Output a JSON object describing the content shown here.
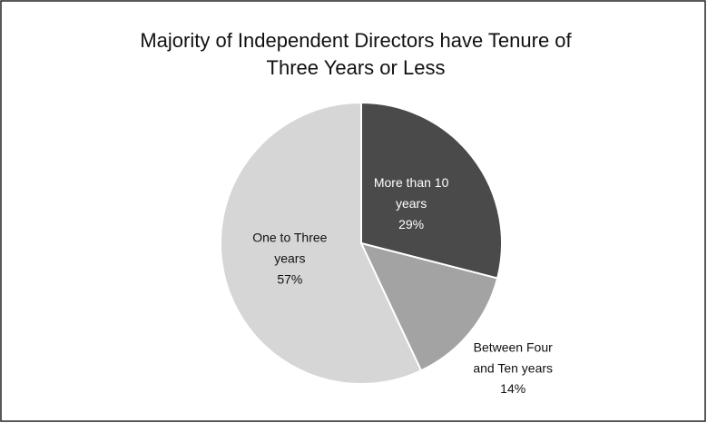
{
  "chart_data": {
    "type": "pie",
    "title": [
      "Majority of Independent Directors have Tenure of",
      "Three Years or Less"
    ],
    "categories": [
      "More than 10 years",
      "Between Four and Ten years",
      "One to Three years"
    ],
    "values": [
      29,
      14,
      57
    ],
    "value_labels": [
      "29%",
      "14%",
      "57%"
    ],
    "colors": [
      "#4a4a4a",
      "#a3a3a3",
      "#d6d6d6"
    ]
  }
}
